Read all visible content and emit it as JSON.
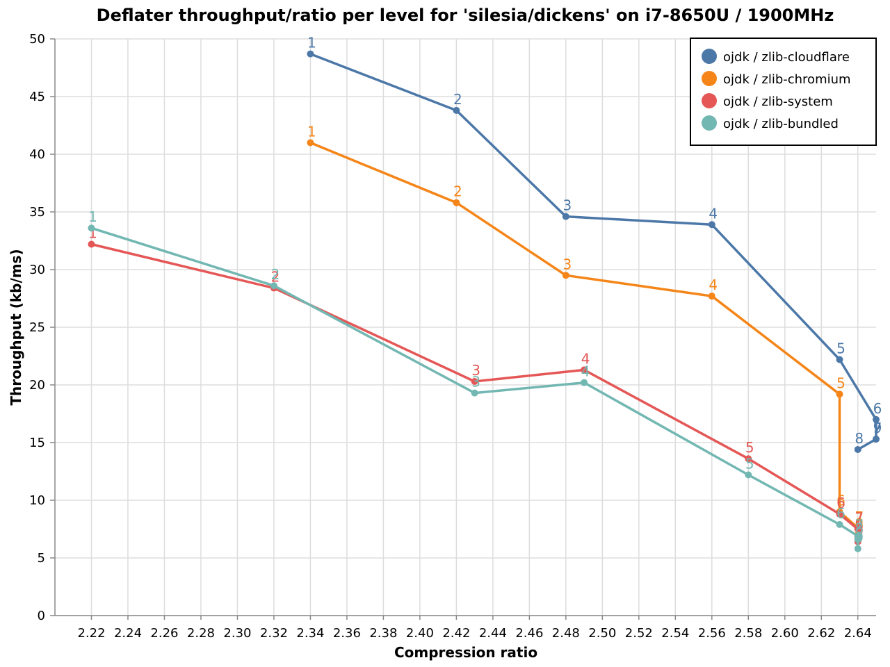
{
  "chart_data": {
    "type": "line",
    "title": "Deflater throughput/ratio per level for 'silesia/dickens' on i7-8650U / 1900MHz",
    "xlabel": "Compression ratio",
    "ylabel": "Throughput (kb/ms)",
    "xlim": [
      2.2,
      2.65
    ],
    "ylim": [
      0,
      50
    ],
    "x_ticks": [
      "2.22",
      "2.24",
      "2.26",
      "2.28",
      "2.30",
      "2.32",
      "2.34",
      "2.36",
      "2.38",
      "2.40",
      "2.42",
      "2.44",
      "2.46",
      "2.48",
      "2.50",
      "2.52",
      "2.54",
      "2.56",
      "2.58",
      "2.60",
      "2.62",
      "2.64"
    ],
    "y_ticks": [
      "0",
      "5",
      "10",
      "15",
      "20",
      "25",
      "30",
      "35",
      "40",
      "45",
      "50"
    ],
    "grid": true,
    "legend_position": "top-right",
    "series": [
      {
        "name": "ojdk / zlib-cloudflare",
        "color": "#4c78a8",
        "points": [
          {
            "x": 2.34,
            "y": 48.7,
            "label": "1"
          },
          {
            "x": 2.42,
            "y": 43.8,
            "label": "2"
          },
          {
            "x": 2.48,
            "y": 34.6,
            "label": "3"
          },
          {
            "x": 2.56,
            "y": 33.9,
            "label": "4"
          },
          {
            "x": 2.63,
            "y": 22.2,
            "label": "5"
          },
          {
            "x": 2.65,
            "y": 17.0,
            "label": "6"
          },
          {
            "x": 2.65,
            "y": 15.3,
            "label": "7"
          },
          {
            "x": 2.64,
            "y": 14.4,
            "label": "8"
          },
          {
            "x": 2.65,
            "y": 15.3,
            "label": "9"
          }
        ]
      },
      {
        "name": "ojdk / zlib-chromium",
        "color": "#f58518",
        "points": [
          {
            "x": 2.34,
            "y": 41.0,
            "label": "1"
          },
          {
            "x": 2.42,
            "y": 35.8,
            "label": "2"
          },
          {
            "x": 2.48,
            "y": 29.5,
            "label": "3"
          },
          {
            "x": 2.56,
            "y": 27.7,
            "label": "4"
          },
          {
            "x": 2.63,
            "y": 19.2,
            "label": "5"
          },
          {
            "x": 2.63,
            "y": 9.0,
            "label": "6"
          },
          {
            "x": 2.64,
            "y": 7.6,
            "label": "7"
          },
          {
            "x": 2.64,
            "y": 7.0,
            "label": "8"
          },
          {
            "x": 2.64,
            "y": 6.8,
            "label": "9"
          }
        ]
      },
      {
        "name": "ojdk / zlib-system",
        "color": "#e45756",
        "points": [
          {
            "x": 2.22,
            "y": 32.2,
            "label": "1"
          },
          {
            "x": 2.32,
            "y": 28.4,
            "label": "2"
          },
          {
            "x": 2.43,
            "y": 20.3,
            "label": "3"
          },
          {
            "x": 2.49,
            "y": 21.3,
            "label": "4"
          },
          {
            "x": 2.58,
            "y": 13.6,
            "label": "5"
          },
          {
            "x": 2.63,
            "y": 8.8,
            "label": "6"
          },
          {
            "x": 2.64,
            "y": 7.5,
            "label": "7"
          },
          {
            "x": 2.64,
            "y": 6.9,
            "label": "8"
          },
          {
            "x": 2.64,
            "y": 6.4,
            "label": "9"
          }
        ]
      },
      {
        "name": "ojdk / zlib-bundled",
        "color": "#72b7b2",
        "points": [
          {
            "x": 2.22,
            "y": 33.6,
            "label": "1"
          },
          {
            "x": 2.32,
            "y": 28.6,
            "label": "2"
          },
          {
            "x": 2.43,
            "y": 19.3,
            "label": "3"
          },
          {
            "x": 2.49,
            "y": 20.2,
            "label": "4"
          },
          {
            "x": 2.58,
            "y": 12.2,
            "label": "5"
          },
          {
            "x": 2.63,
            "y": 7.9,
            "label": "6"
          },
          {
            "x": 2.64,
            "y": 6.9,
            "label": "7"
          },
          {
            "x": 2.64,
            "y": 6.6,
            "label": "8"
          },
          {
            "x": 2.64,
            "y": 5.8,
            "label": "9"
          }
        ]
      }
    ]
  }
}
